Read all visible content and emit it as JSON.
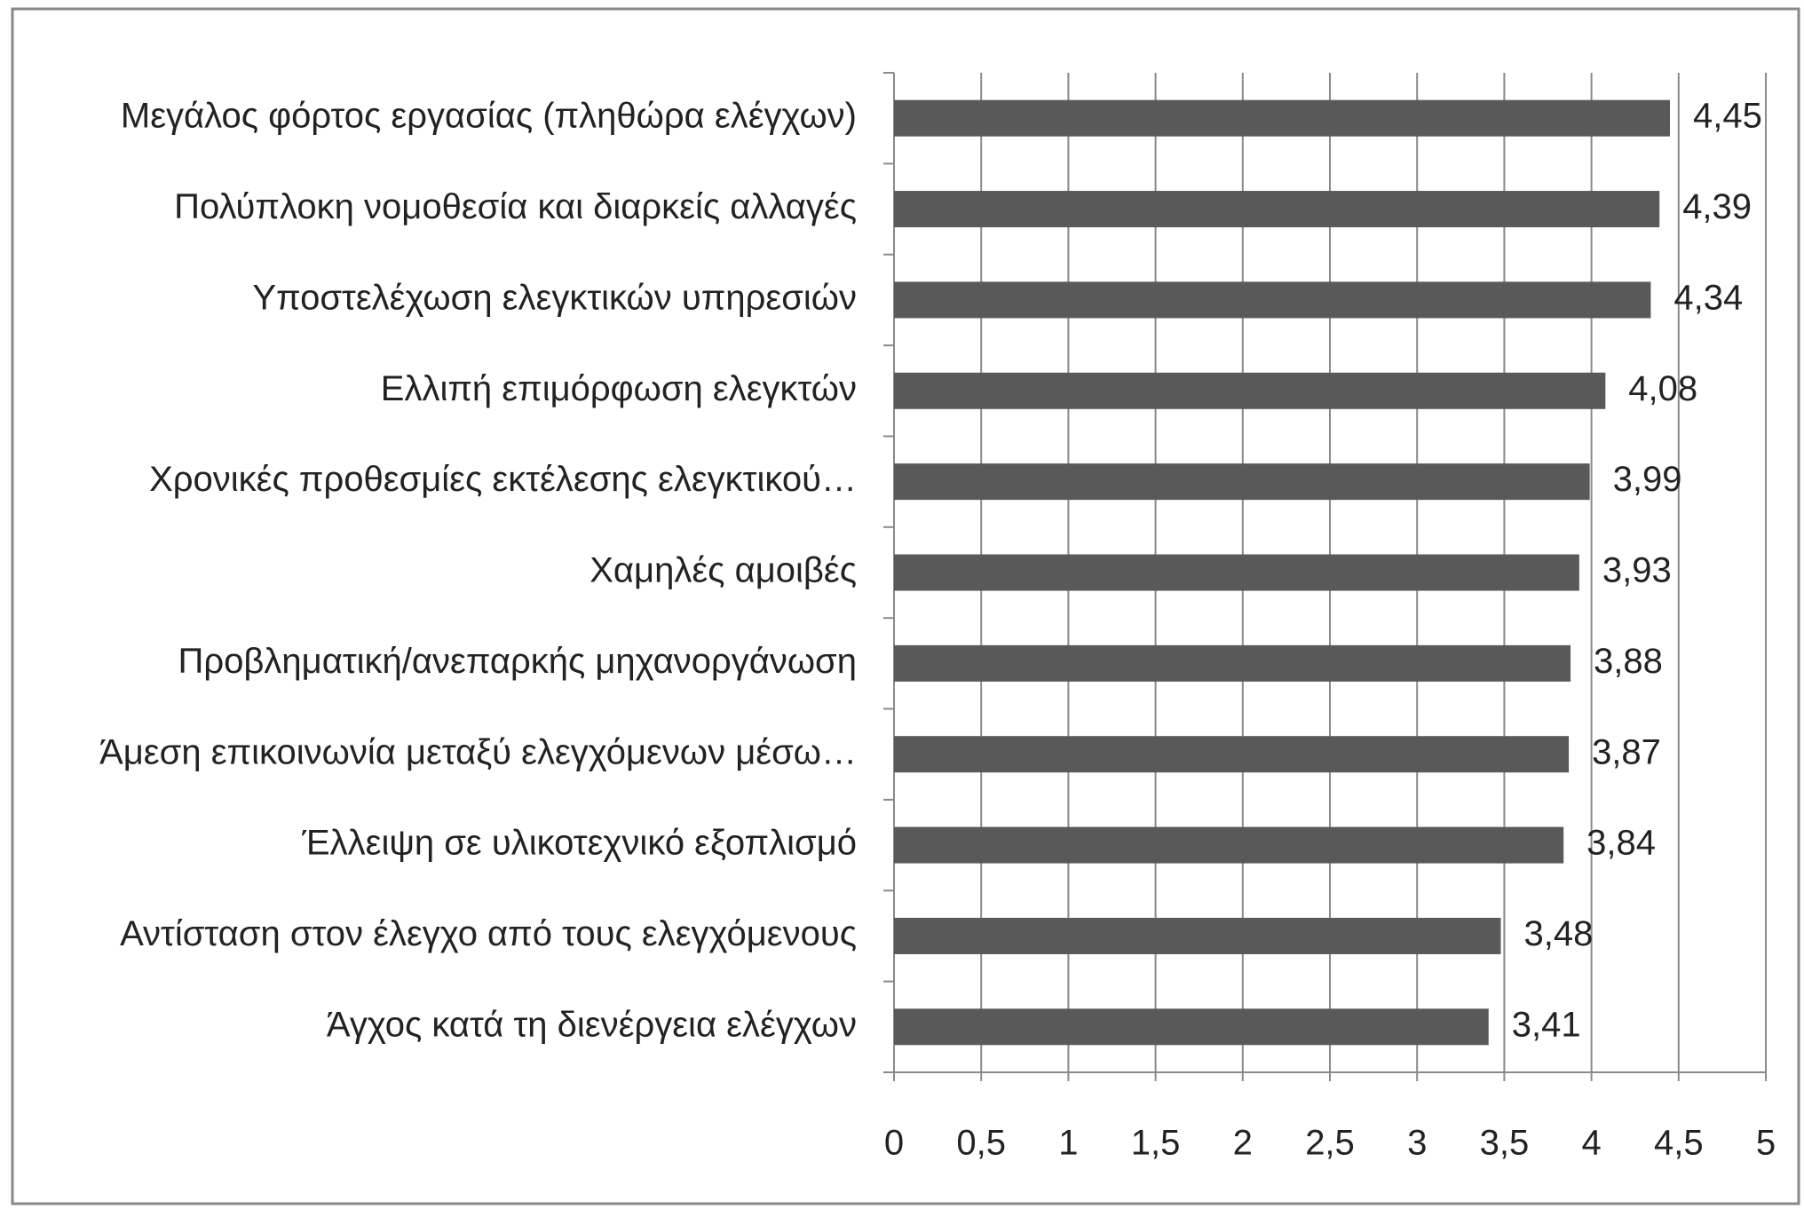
{
  "chart_data": {
    "type": "bar",
    "orientation": "horizontal",
    "categories": [
      "Μεγάλος φόρτος εργασίας (πληθώρα ελέγχων)",
      "Πολύπλοκη νομοθεσία και διαρκείς αλλαγές",
      "Υποστελέχωση ελεγκτικών υπηρεσιών",
      "Ελλιπή επιμόρφωση ελεγκτών",
      "Χρονικές προθεσμίες εκτέλεσης ελεγκτικού…",
      "Χαμηλές αμοιβές",
      "Προβληματική/ανεπαρκής μηχανοργάνωση",
      "Άμεση επικοινωνία μεταξύ ελεγχόμενων μέσω…",
      "Έλλειψη σε υλικοτεχνικό εξοπλισμό",
      "Αντίσταση στον έλεγχο από τους ελεγχόμενους",
      "Άγχος κατά τη διενέργεια ελέγχων"
    ],
    "values": [
      4.45,
      4.39,
      4.34,
      4.08,
      3.99,
      3.93,
      3.88,
      3.87,
      3.84,
      3.48,
      3.41
    ],
    "value_labels": [
      "4,45",
      "4,39",
      "4,34",
      "4,08",
      "3,99",
      "3,93",
      "3,88",
      "3,87",
      "3,84",
      "3,48",
      "3,41"
    ],
    "color": "#595959",
    "xlim": [
      0,
      5
    ],
    "xticks": [
      0,
      {
        "value": 0.5,
        "label": "0,5"
      },
      1,
      {
        "value": 1.5,
        "label": "1,5"
      },
      2,
      {
        "value": 2.5,
        "label": "2,5"
      },
      3,
      {
        "value": 3.5,
        "label": "3,5"
      },
      4,
      {
        "value": 4.5,
        "label": "4,5"
      },
      5
    ],
    "grid": true
  }
}
